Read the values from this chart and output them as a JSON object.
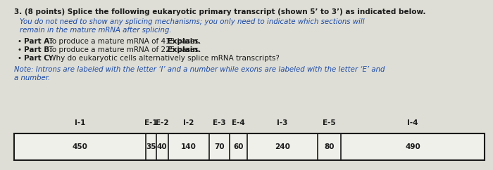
{
  "background_color": "#deded6",
  "text_color": "#1a1a1a",
  "blue_color": "#1a4aaa",
  "note_color": "#1a4aaa",
  "table_border_color": "#1a1a1a",
  "table_bg": "#f0f0ea",
  "segments": [
    {
      "label": "I-1",
      "value": "450",
      "type": "intron"
    },
    {
      "label": "E-1",
      "value": "35",
      "type": "exon"
    },
    {
      "label": "E-2",
      "value": "40",
      "type": "exon"
    },
    {
      "label": "I-2",
      "value": "140",
      "type": "intron"
    },
    {
      "label": "E-3",
      "value": "70",
      "type": "exon"
    },
    {
      "label": "E-4",
      "value": "60",
      "type": "exon"
    },
    {
      "label": "I-3",
      "value": "240",
      "type": "intron"
    },
    {
      "label": "E-5",
      "value": "80",
      "type": "exon"
    },
    {
      "label": "I-4",
      "value": "490",
      "type": "intron"
    }
  ]
}
